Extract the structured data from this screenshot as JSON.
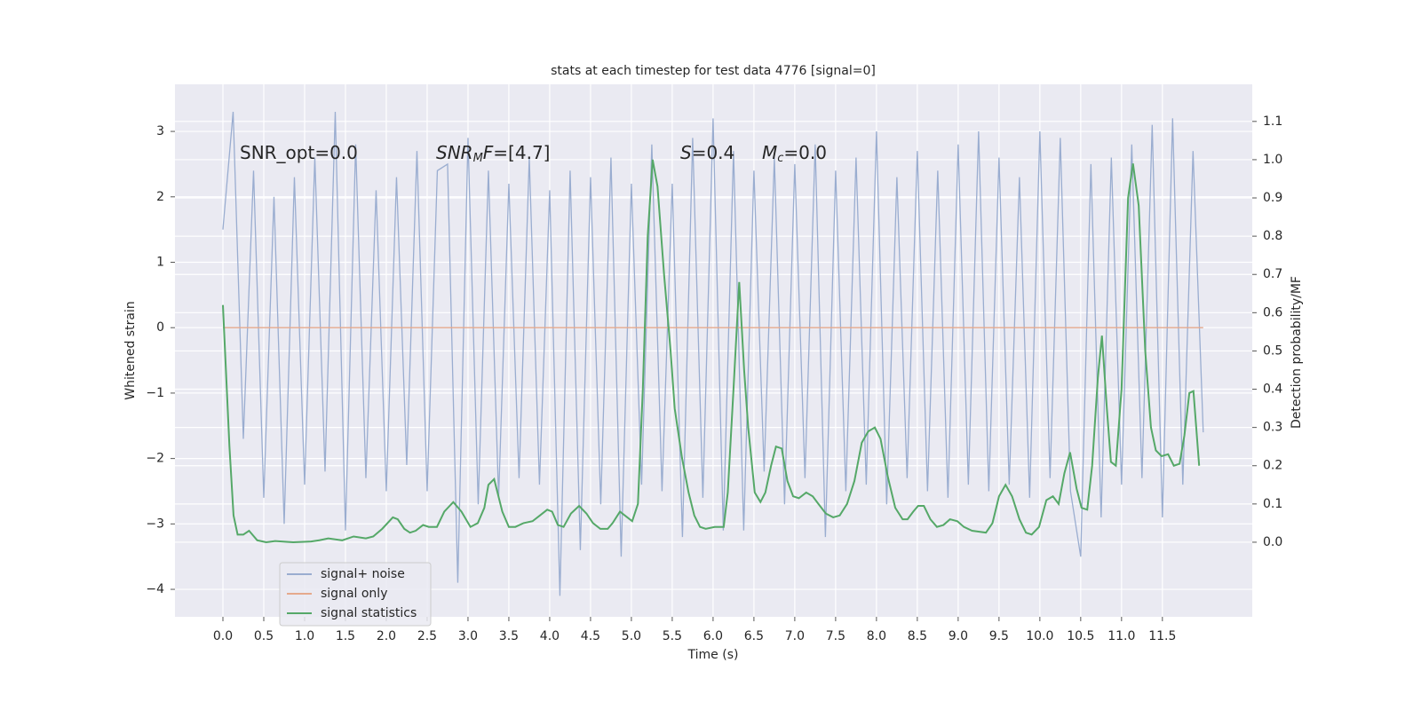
{
  "chart_data": {
    "type": "line",
    "title": "stats at each timestep for test data 4776 [signal=0]",
    "xlabel": "Time (s)",
    "ylabel": "Whitened strain",
    "y2label": "Detection probability/MF",
    "xlim": [
      -0.587,
      12.6
    ],
    "ylim": [
      -4.42,
      3.72
    ],
    "y2lim": [
      -0.195,
      1.197
    ],
    "xticks": [
      {
        "value": 0,
        "label": "0.0"
      },
      0.5,
      {
        "value": 1,
        "label": "1.0"
      },
      1.5,
      {
        "value": 2,
        "label": "2.0"
      },
      2.5,
      {
        "value": 3,
        "label": "3.0"
      },
      3.5,
      {
        "value": 4,
        "label": "4.0"
      },
      4.5,
      {
        "value": 5,
        "label": "5.0"
      },
      5.5,
      {
        "value": 6,
        "label": "6.0"
      },
      6.5,
      {
        "value": 7,
        "label": "7.0"
      },
      7.5,
      {
        "value": 8,
        "label": "8.0"
      },
      8.5,
      {
        "value": 9,
        "label": "9.0"
      },
      9.5,
      {
        "value": 10,
        "label": "10.0"
      },
      10.5,
      {
        "value": 11,
        "label": "11.0"
      },
      11.5
    ],
    "yticks": [
      {
        "value": -4,
        "label": "−4"
      },
      {
        "value": -3,
        "label": "−3"
      },
      {
        "value": -2,
        "label": "−2"
      },
      {
        "value": -1,
        "label": "−1"
      },
      0,
      1,
      2,
      3
    ],
    "y2ticks": [
      {
        "value": 0,
        "label": "0.0"
      },
      0.1,
      0.2,
      0.3,
      0.4,
      0.5,
      0.6,
      0.7,
      0.8,
      0.9,
      {
        "value": 1,
        "label": "1.0"
      },
      1.1
    ],
    "grid": true,
    "legend": "lower left",
    "annotations": [
      {
        "segments": [
          {
            "text": "SNR_opt=0.0",
            "italic": false,
            "sub": false
          }
        ]
      },
      {
        "segments": [
          {
            "text": "SNR",
            "italic": true,
            "sub": false
          },
          {
            "text": "M",
            "italic": true,
            "sub": true
          },
          {
            "text": "F",
            "italic": true,
            "sub": false
          },
          {
            "text": "=[4.7]",
            "italic": false,
            "sub": false
          }
        ]
      },
      {
        "segments": [
          {
            "text": "S",
            "italic": true,
            "sub": false
          },
          {
            "text": "=0.4",
            "italic": false,
            "sub": false
          }
        ]
      },
      {
        "segments": [
          {
            "text": "M",
            "italic": true,
            "sub": false
          },
          {
            "text": "c",
            "italic": true,
            "sub": true
          },
          {
            "text": "=0.0",
            "italic": false,
            "sub": false
          }
        ]
      }
    ],
    "series": [
      {
        "name": "signal+ noise",
        "color": "#9aadd0",
        "x": [
          0,
          0.125,
          0.25,
          0.375,
          0.5,
          0.625,
          0.75,
          0.875,
          1,
          1.125,
          1.25,
          1.375,
          1.5,
          1.625,
          1.75,
          1.875,
          2,
          2.125,
          2.25,
          2.375,
          2.5,
          2.625,
          2.75,
          2.875,
          3,
          3.125,
          3.25,
          3.375,
          3.5,
          3.625,
          3.75,
          3.875,
          4,
          4.125,
          4.25,
          4.375,
          4.5,
          4.625,
          4.75,
          4.875,
          5,
          5.125,
          5.25,
          5.375,
          5.5,
          5.625,
          5.75,
          5.875,
          6,
          6.125,
          6.25,
          6.375,
          6.5,
          6.625,
          6.75,
          6.875,
          7,
          7.125,
          7.25,
          7.375,
          7.5,
          7.625,
          7.75,
          7.875,
          8,
          8.125,
          8.25,
          8.375,
          8.5,
          8.625,
          8.75,
          8.875,
          9,
          9.125,
          9.25,
          9.375,
          9.5,
          9.625,
          9.75,
          9.875,
          10,
          10.125,
          10.25,
          10.375,
          10.5,
          10.625,
          10.75,
          10.875,
          11,
          11.125,
          11.25,
          11.375,
          11.5,
          11.625,
          11.75,
          11.875,
          12
        ],
        "values": [
          1.5,
          3.3,
          -1.7,
          2.4,
          -2.6,
          2.0,
          -3.0,
          2.3,
          -2.4,
          2.6,
          -2.2,
          3.3,
          -3.1,
          2.8,
          -2.3,
          2.1,
          -2.5,
          2.3,
          -2.1,
          2.7,
          -2.5,
          2.4,
          2.5,
          -3.9,
          2.9,
          -2.7,
          2.4,
          -2.6,
          2.2,
          -2.3,
          2.6,
          -2.4,
          2.1,
          -4.1,
          2.4,
          -3.4,
          2.3,
          -2.7,
          2.6,
          -3.5,
          2.2,
          -2.4,
          2.8,
          -2.5,
          2.2,
          -3.2,
          2.9,
          -2.6,
          3.2,
          -3.1,
          2.7,
          -3.1,
          2.4,
          -2.2,
          2.6,
          -2.7,
          2.5,
          -2.3,
          2.8,
          -3.2,
          2.4,
          -2.5,
          2.6,
          -2.4,
          3.0,
          -2.7,
          2.3,
          -2.3,
          2.7,
          -2.5,
          2.4,
          -2.6,
          2.8,
          -2.4,
          3.0,
          -2.5,
          2.6,
          -2.4,
          2.3,
          -2.6,
          3.0,
          -2.3,
          2.9,
          -2.5,
          -3.5,
          2.5,
          -2.9,
          2.6,
          -2.4,
          2.8,
          -2.3,
          3.1,
          -2.9,
          3.2,
          -2.4,
          2.7,
          -1.6
        ]
      },
      {
        "name": "signal only",
        "color": "#e5a98c",
        "x": [
          0,
          12
        ],
        "values": [
          0,
          0
        ]
      },
      {
        "name": "signal statistics",
        "color": "#55a868",
        "axis": "y2",
        "x": [
          0,
          0.08,
          0.13,
          0.18,
          0.25,
          0.32,
          0.42,
          0.53,
          0.64,
          0.86,
          1.08,
          1.18,
          1.29,
          1.46,
          1.6,
          1.75,
          1.84,
          1.95,
          2.08,
          2.14,
          2.22,
          2.29,
          2.36,
          2.45,
          2.52,
          2.62,
          2.71,
          2.82,
          2.92,
          3.03,
          3.12,
          3.2,
          3.25,
          3.32,
          3.42,
          3.5,
          3.58,
          3.68,
          3.79,
          3.88,
          3.97,
          4.03,
          4.1,
          4.17,
          4.26,
          4.36,
          4.45,
          4.53,
          4.62,
          4.71,
          4.77,
          4.86,
          4.95,
          5.01,
          5.08,
          5.14,
          5.2,
          5.26,
          5.32,
          5.4,
          5.48,
          5.53,
          5.62,
          5.7,
          5.77,
          5.84,
          5.91,
          6.02,
          6.13,
          6.18,
          6.25,
          6.32,
          6.38,
          6.43,
          6.51,
          6.58,
          6.64,
          6.71,
          6.77,
          6.84,
          6.91,
          6.98,
          7.05,
          7.14,
          7.22,
          7.29,
          7.38,
          7.47,
          7.55,
          7.64,
          7.73,
          7.82,
          7.9,
          7.98,
          8.05,
          8.14,
          8.23,
          8.32,
          8.38,
          8.45,
          8.51,
          8.58,
          8.66,
          8.74,
          8.82,
          8.9,
          8.99,
          9.07,
          9.17,
          9.34,
          9.42,
          9.5,
          9.58,
          9.66,
          9.75,
          9.83,
          9.9,
          9.99,
          10.08,
          10.16,
          10.23,
          10.3,
          10.37,
          10.45,
          10.51,
          10.58,
          10.64,
          10.71,
          10.76,
          10.82,
          10.87,
          10.93,
          11.0,
          11.08,
          11.14,
          11.21,
          11.29,
          11.36,
          11.42,
          11.49,
          11.57,
          11.64,
          11.71,
          11.77,
          11.83,
          11.88,
          11.95
        ],
        "values": [
          0.62,
          0.25,
          0.07,
          0.02,
          0.02,
          0.03,
          0.005,
          0.0,
          0.003,
          0.0,
          0.002,
          0.005,
          0.01,
          0.005,
          0.015,
          0.01,
          0.015,
          0.035,
          0.065,
          0.06,
          0.035,
          0.025,
          0.03,
          0.045,
          0.04,
          0.04,
          0.08,
          0.105,
          0.08,
          0.04,
          0.05,
          0.09,
          0.15,
          0.165,
          0.08,
          0.04,
          0.04,
          0.05,
          0.055,
          0.07,
          0.085,
          0.08,
          0.045,
          0.04,
          0.075,
          0.095,
          0.075,
          0.05,
          0.035,
          0.035,
          0.05,
          0.08,
          0.065,
          0.055,
          0.1,
          0.4,
          0.8,
          1.0,
          0.93,
          0.7,
          0.5,
          0.35,
          0.22,
          0.13,
          0.07,
          0.04,
          0.035,
          0.04,
          0.04,
          0.13,
          0.4,
          0.68,
          0.45,
          0.3,
          0.13,
          0.105,
          0.13,
          0.2,
          0.25,
          0.245,
          0.16,
          0.12,
          0.115,
          0.13,
          0.12,
          0.1,
          0.075,
          0.065,
          0.07,
          0.1,
          0.16,
          0.26,
          0.29,
          0.3,
          0.27,
          0.17,
          0.09,
          0.06,
          0.06,
          0.08,
          0.095,
          0.095,
          0.06,
          0.04,
          0.045,
          0.06,
          0.055,
          0.04,
          0.03,
          0.025,
          0.05,
          0.12,
          0.15,
          0.12,
          0.06,
          0.025,
          0.02,
          0.04,
          0.11,
          0.12,
          0.1,
          0.18,
          0.235,
          0.14,
          0.09,
          0.085,
          0.2,
          0.43,
          0.54,
          0.35,
          0.21,
          0.2,
          0.4,
          0.9,
          0.99,
          0.88,
          0.5,
          0.3,
          0.24,
          0.225,
          0.23,
          0.2,
          0.205,
          0.28,
          0.39,
          0.395,
          0.2
        ]
      }
    ]
  }
}
